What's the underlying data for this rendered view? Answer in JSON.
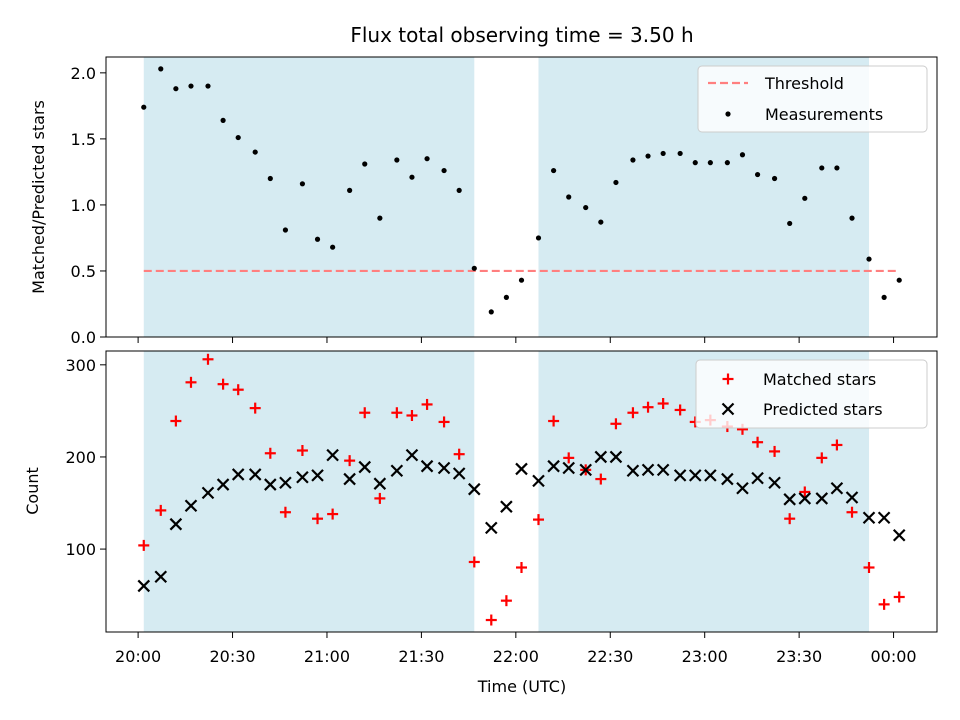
{
  "chart_data": {
    "title": "Flux total observing time = 3.50 h",
    "xlabel": "Time (UTC)",
    "x_ticks": [
      {
        "label": "20:00",
        "hour": 20.0
      },
      {
        "label": "20:30",
        "hour": 20.5
      },
      {
        "label": "21:00",
        "hour": 21.0
      },
      {
        "label": "21:30",
        "hour": 21.5
      },
      {
        "label": "22:00",
        "hour": 22.0
      },
      {
        "label": "22:30",
        "hour": 22.5
      },
      {
        "label": "23:00",
        "hour": 23.0
      },
      {
        "label": "23:30",
        "hour": 23.5
      },
      {
        "label": "00:00",
        "hour": 24.0
      }
    ],
    "x_range_hours": [
      19.83,
      24.23
    ],
    "shaded_intervals_hours": [
      [
        20.03,
        21.78
      ],
      [
        22.12,
        23.87
      ]
    ],
    "shade_color": "#add8e6",
    "x_hours": [
      20.03,
      20.12,
      20.2,
      20.28,
      20.37,
      20.45,
      20.53,
      20.62,
      20.7,
      20.78,
      20.87,
      20.95,
      21.03,
      21.12,
      21.2,
      21.28,
      21.37,
      21.45,
      21.53,
      21.62,
      21.7,
      21.78,
      21.87,
      21.95,
      22.03,
      22.12,
      22.2,
      22.28,
      22.37,
      22.45,
      22.53,
      22.62,
      22.7,
      22.78,
      22.87,
      22.95,
      23.03,
      23.12,
      23.2,
      23.28,
      23.37,
      23.45,
      23.53,
      23.62,
      23.7,
      23.78,
      23.87,
      23.95,
      24.03
    ],
    "panels": [
      {
        "type": "scatter",
        "ylabel": "Matched/Predicted stars",
        "ylim": [
          0,
          2.12
        ],
        "y_ticks": [
          {
            "label": "0.0",
            "value": 0.0
          },
          {
            "label": "0.5",
            "value": 0.5
          },
          {
            "label": "1.0",
            "value": 1.0
          },
          {
            "label": "1.5",
            "value": 1.5
          },
          {
            "label": "2.0",
            "value": 2.0
          }
        ],
        "threshold": {
          "name": "Threshold",
          "value": 0.5,
          "color": "#ff7f7f",
          "x_range_hours": [
            20.03,
            24.03
          ]
        },
        "legend_position": "top-right",
        "series": [
          {
            "name": "Measurements",
            "marker": "dot",
            "color": "#000000",
            "values": [
              1.74,
              2.03,
              1.88,
              1.9,
              1.9,
              1.64,
              1.51,
              1.4,
              1.2,
              0.81,
              1.16,
              0.74,
              0.68,
              1.11,
              1.31,
              0.9,
              1.34,
              1.21,
              1.35,
              1.26,
              1.11,
              0.52,
              0.19,
              0.3,
              0.43,
              0.75,
              1.26,
              1.06,
              0.98,
              0.87,
              1.17,
              1.34,
              1.37,
              1.39,
              1.39,
              1.32,
              1.32,
              1.32,
              1.38,
              1.23,
              1.2,
              0.86,
              1.05,
              1.28,
              1.28,
              0.9,
              0.59,
              0.3,
              0.43
            ]
          }
        ]
      },
      {
        "type": "scatter",
        "ylabel": "Count",
        "ylim": [
          10,
          315
        ],
        "y_ticks": [
          {
            "label": "100",
            "value": 100
          },
          {
            "label": "200",
            "value": 200
          },
          {
            "label": "300",
            "value": 300
          }
        ],
        "legend_position": "top-right",
        "series": [
          {
            "name": "Matched stars",
            "marker": "plus",
            "color": "#ff0000",
            "values": [
              104,
              142,
              239,
              281,
              306,
              279,
              273,
              253,
              204,
              140,
              207,
              133,
              138,
              196,
              248,
              155,
              248,
              245,
              257,
              238,
              203,
              86,
              23,
              44,
              80,
              132,
              239,
              199,
              186,
              176,
              236,
              248,
              254,
              258,
              251,
              238,
              240,
              233,
              230,
              216,
              206,
              133,
              162,
              199,
              213,
              140,
              80,
              40,
              48
            ]
          },
          {
            "name": "Predicted stars",
            "marker": "x",
            "color": "#000000",
            "values": [
              60,
              70,
              127,
              147,
              161,
              170,
              181,
              181,
              170,
              172,
              178,
              180,
              202,
              176,
              189,
              171,
              185,
              202,
              190,
              188,
              182,
              165,
              123,
              146,
              187,
              174,
              190,
              188,
              186,
              200,
              200,
              185,
              186,
              186,
              180,
              180,
              180,
              176,
              166,
              177,
              172,
              154,
              155,
              155,
              166,
              156,
              134,
              134,
              115
            ]
          }
        ]
      }
    ]
  }
}
